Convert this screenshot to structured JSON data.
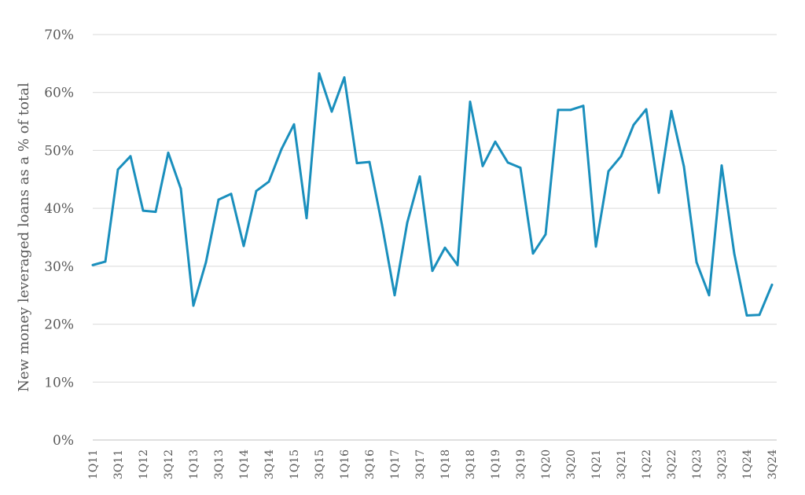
{
  "chart_data": {
    "type": "line",
    "title": "",
    "xlabel": "",
    "ylabel": "New money leveraged loans as a % of total",
    "ylim": [
      0,
      70
    ],
    "yticks": [
      0,
      10,
      20,
      30,
      40,
      50,
      60,
      70
    ],
    "ytick_suffix": "%",
    "grid": true,
    "color": "#1a8fbd",
    "categories": [
      "1Q11",
      "2Q11",
      "3Q11",
      "4Q11",
      "1Q12",
      "2Q12",
      "3Q12",
      "4Q12",
      "1Q13",
      "2Q13",
      "3Q13",
      "4Q13",
      "1Q14",
      "2Q14",
      "3Q14",
      "4Q14",
      "1Q15",
      "2Q15",
      "3Q15",
      "4Q15",
      "1Q16",
      "2Q16",
      "3Q16",
      "4Q16",
      "1Q17",
      "2Q17",
      "3Q17",
      "4Q17",
      "1Q18",
      "2Q18",
      "3Q18",
      "4Q18",
      "1Q19",
      "2Q19",
      "3Q19",
      "4Q19",
      "1Q20",
      "2Q20",
      "3Q20",
      "4Q20",
      "1Q21",
      "2Q21",
      "3Q21",
      "4Q21",
      "1Q22",
      "2Q22",
      "3Q22",
      "4Q22",
      "1Q23",
      "2Q23",
      "3Q23",
      "4Q23",
      "1Q24",
      "2Q24",
      "3Q24"
    ],
    "visible_tick_labels": [
      "1Q11",
      "3Q11",
      "1Q12",
      "3Q12",
      "1Q13",
      "3Q13",
      "1Q14",
      "3Q14",
      "1Q15",
      "3Q15",
      "1Q16",
      "3Q16",
      "1Q17",
      "3Q17",
      "1Q18",
      "3Q18",
      "1Q19",
      "3Q19",
      "1Q20",
      "3Q20",
      "1Q21",
      "3Q21",
      "1Q22",
      "3Q22",
      "1Q23",
      "3Q23",
      "1Q24",
      "3Q24"
    ],
    "series": [
      {
        "values": [
          30.2,
          30.8,
          46.7,
          49.0,
          39.6,
          39.4,
          49.6,
          43.4,
          23.2,
          30.7,
          41.5,
          42.5,
          33.5,
          43.0,
          44.6,
          50.2,
          54.5,
          38.3,
          63.3,
          56.7,
          62.6,
          47.8,
          48.0,
          37.1,
          25.0,
          37.5,
          45.5,
          29.2,
          33.2,
          30.2,
          58.4,
          47.3,
          51.5,
          47.9,
          47.0,
          32.2,
          35.5,
          57.0,
          57.0,
          57.7,
          33.4,
          46.4,
          49.0,
          54.4,
          57.1,
          42.7,
          56.8,
          47.2,
          30.7,
          25.0,
          47.4,
          32.2,
          21.5,
          21.6,
          26.8
        ]
      }
    ]
  }
}
